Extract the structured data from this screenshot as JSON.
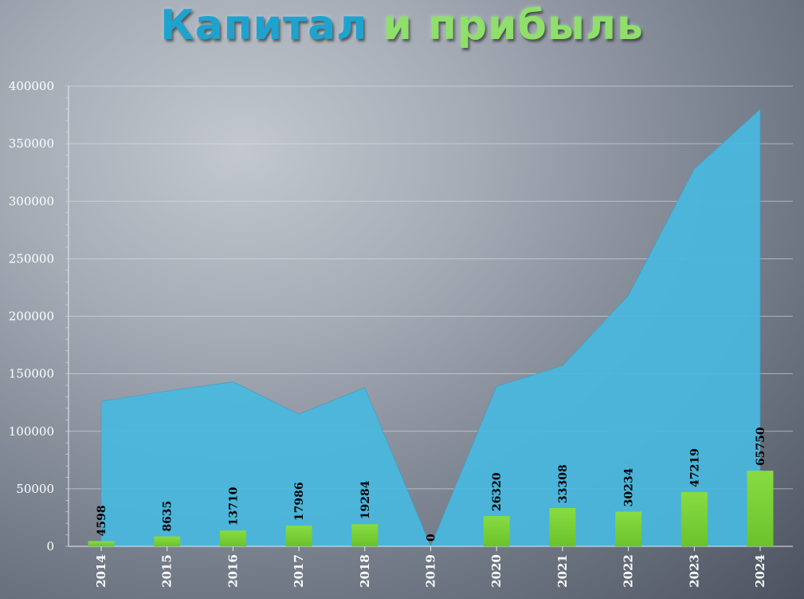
{
  "title": {
    "part1": "Капитал",
    "part2": "и прибыль"
  },
  "colors": {
    "title_part1": "#1ea3cf",
    "title_part2": "#8fe06a",
    "area_fill": "#48b8de",
    "bar_fill": "#7ed33a",
    "grid": "#dfe3e8",
    "label": "#ffffff",
    "data_label": "#000000"
  },
  "chart_data": {
    "type": "bar",
    "categories": [
      "2014",
      "2015",
      "2016",
      "2017",
      "2018",
      "2019",
      "2020",
      "2021",
      "2022",
      "2023",
      "2024"
    ],
    "series": [
      {
        "type": "area",
        "values": [
          126000,
          135000,
          143000,
          115000,
          138000,
          0,
          139000,
          157000,
          218000,
          328000,
          380000
        ]
      },
      {
        "type": "bar",
        "values": [
          4598,
          8635,
          13710,
          17986,
          19284,
          0,
          26320,
          33308,
          30234,
          47219,
          65750
        ]
      }
    ],
    "data_labels": [
      "4598",
      "8635",
      "13710",
      "17986",
      "19284",
      "0",
      "26320",
      "33308",
      "30234",
      "47219",
      "65750"
    ],
    "yticks": [
      "0",
      "50000",
      "100000",
      "150000",
      "200000",
      "250000",
      "300000",
      "350000",
      "400000"
    ],
    "ylim": [
      0,
      400000
    ],
    "grid": true,
    "legend": "none",
    "xlabel": "",
    "ylabel": ""
  }
}
